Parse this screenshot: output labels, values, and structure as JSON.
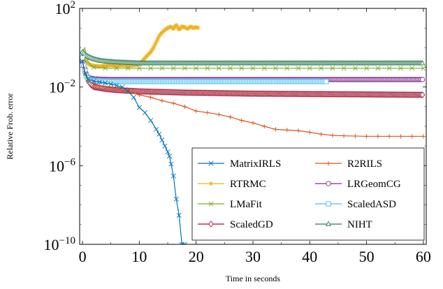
{
  "chart_data": {
    "type": "line",
    "xlabel": "Time in seconds",
    "ylabel": "Relative Frob. error",
    "x_scale": "linear",
    "y_scale": "log",
    "xlim": [
      -0.5,
      60.5
    ],
    "ylim": [
      1e-10,
      100
    ],
    "x_ticks": [
      0,
      10,
      20,
      30,
      40,
      50,
      60
    ],
    "x_tick_labels": [
      "0",
      "10",
      "20",
      "30",
      "40",
      "50",
      "60"
    ],
    "y_ticks": [
      1e-10,
      1e-06,
      0.01,
      100
    ],
    "y_tick_labels": [
      {
        "base": "10",
        "exp": "−10"
      },
      {
        "base": "10",
        "exp": "−6"
      },
      {
        "base": "10",
        "exp": "−2"
      },
      {
        "base": "10",
        "exp": "2"
      }
    ],
    "legend_position": "lower-right",
    "legend_columns": 2,
    "series": [
      {
        "name": "MatrixIRLS",
        "color": "#0072bd",
        "marker": "x",
        "x": [
          0,
          0.5,
          1,
          2,
          3,
          4,
          5,
          6,
          7,
          8,
          9,
          10,
          11,
          12,
          13,
          13.5,
          14,
          14.5,
          15,
          15.3,
          15.6,
          16,
          16.5,
          17,
          17.5,
          18
        ],
        "y": [
          0.2,
          0.05,
          0.025,
          0.02,
          0.018,
          0.016,
          0.014,
          0.012,
          0.01,
          0.006,
          0.003,
          0.0009,
          0.0005,
          0.0002,
          7e-05,
          4e-05,
          2e-05,
          1e-05,
          5e-06,
          3e-06,
          1.2e-06,
          3e-07,
          2e-08,
          3e-09,
          1e-10,
          1e-10
        ]
      },
      {
        "name": "R2RILS",
        "color": "#d95319",
        "marker": "+",
        "x": [
          0,
          0.4,
          1,
          2,
          3,
          4,
          6,
          8,
          10,
          12,
          14,
          16,
          18,
          20,
          22,
          24,
          26,
          28,
          30,
          32,
          34,
          36,
          38,
          40,
          42,
          44,
          46,
          48,
          50,
          52,
          54,
          56,
          58,
          60
        ],
        "y": [
          0.2,
          0.05,
          0.02,
          0.015,
          0.012,
          0.01,
          0.008,
          0.006,
          0.004,
          0.003,
          0.002,
          0.0015,
          0.001,
          0.0006,
          0.0005,
          0.0004,
          0.0003,
          0.0002,
          0.00015,
          0.0001,
          7e-05,
          6.5e-05,
          6e-05,
          5e-05,
          4e-05,
          3.5e-05,
          3.3e-05,
          3.2e-05,
          3.1e-05,
          3.1e-05,
          3.1e-05,
          3.1e-05,
          3.1e-05,
          3.1e-05
        ]
      },
      {
        "name": "RTRMC",
        "color": "#edb120",
        "marker": "*",
        "x": [
          0,
          0.3,
          0.6,
          1,
          1.5,
          2,
          3,
          4,
          5,
          6,
          7,
          8,
          9,
          10,
          11,
          12,
          12.5,
          13,
          13.5,
          14,
          14.5,
          15,
          15.5,
          16,
          16.5,
          17,
          17.5,
          18,
          18.5,
          19,
          19.5,
          20,
          20.5
        ],
        "y": [
          0.3,
          0.4,
          0.2,
          0.15,
          0.13,
          0.12,
          0.11,
          0.12,
          0.13,
          0.12,
          0.13,
          0.12,
          0.13,
          0.14,
          0.3,
          0.6,
          1,
          2,
          4,
          6,
          8,
          10,
          12,
          9,
          15,
          8,
          12,
          11,
          9,
          12,
          10,
          11,
          10
        ]
      },
      {
        "name": "LRGeomCG",
        "color": "#7e2f8e",
        "marker": "o",
        "x": [
          0,
          0.3,
          0.6,
          1,
          2,
          3,
          5,
          8,
          12,
          16,
          20,
          25,
          30,
          35,
          40,
          45,
          50,
          55,
          60
        ],
        "y": [
          0.2,
          0.1,
          0.05,
          0.03,
          0.026,
          0.025,
          0.024,
          0.024,
          0.024,
          0.024,
          0.024,
          0.024,
          0.024,
          0.024,
          0.024,
          0.024,
          0.024,
          0.024,
          0.024
        ]
      },
      {
        "name": "LMaFit",
        "color": "#77ac30",
        "marker": "x",
        "x": [
          0,
          0.2,
          0.4,
          0.7,
          1,
          1.5,
          2,
          3,
          4,
          5,
          7,
          10,
          15,
          20,
          25,
          30,
          35,
          40,
          45,
          50,
          55,
          60
        ],
        "y": [
          0.5,
          0.8,
          1.0,
          0.4,
          0.2,
          0.12,
          0.1,
          0.095,
          0.09,
          0.09,
          0.09,
          0.09,
          0.09,
          0.09,
          0.09,
          0.09,
          0.09,
          0.09,
          0.09,
          0.09,
          0.09,
          0.09
        ]
      },
      {
        "name": "ScaledASD",
        "color": "#4dbeee",
        "marker": "square",
        "x": [
          0,
          0.3,
          0.6,
          1,
          1.5,
          2,
          3,
          5,
          8,
          12,
          16,
          20,
          25,
          30,
          35,
          40,
          43
        ],
        "y": [
          0.3,
          0.1,
          0.04,
          0.025,
          0.022,
          0.021,
          0.02,
          0.019,
          0.019,
          0.019,
          0.019,
          0.019,
          0.019,
          0.019,
          0.019,
          0.019,
          0.019
        ]
      },
      {
        "name": "ScaledGD",
        "color": "#a2142f",
        "marker": "diamond",
        "x": [
          0,
          0.3,
          0.6,
          1,
          1.5,
          2,
          3,
          4,
          5,
          6,
          8,
          10,
          12,
          15,
          18,
          22,
          26,
          30,
          35,
          40,
          45,
          50,
          55,
          60
        ],
        "y": [
          0.3,
          0.15,
          0.05,
          0.02,
          0.013,
          0.01,
          0.009,
          0.008,
          0.0075,
          0.007,
          0.0065,
          0.006,
          0.0058,
          0.0055,
          0.0052,
          0.005,
          0.0048,
          0.0046,
          0.0045,
          0.0044,
          0.0043,
          0.0042,
          0.0041,
          0.004
        ]
      },
      {
        "name": "NIHT",
        "color": "#2a7b4f",
        "marker": "triangle",
        "x": [
          0,
          0.3,
          0.6,
          1,
          1.5,
          2,
          3,
          4,
          5,
          6,
          8,
          10,
          12,
          15,
          20,
          25,
          30,
          35,
          40,
          45,
          50,
          55,
          60
        ],
        "y": [
          0.6,
          0.5,
          0.4,
          0.35,
          0.3,
          0.26,
          0.22,
          0.2,
          0.19,
          0.18,
          0.17,
          0.16,
          0.16,
          0.16,
          0.16,
          0.16,
          0.16,
          0.16,
          0.16,
          0.16,
          0.16,
          0.16,
          0.16
        ]
      }
    ]
  }
}
